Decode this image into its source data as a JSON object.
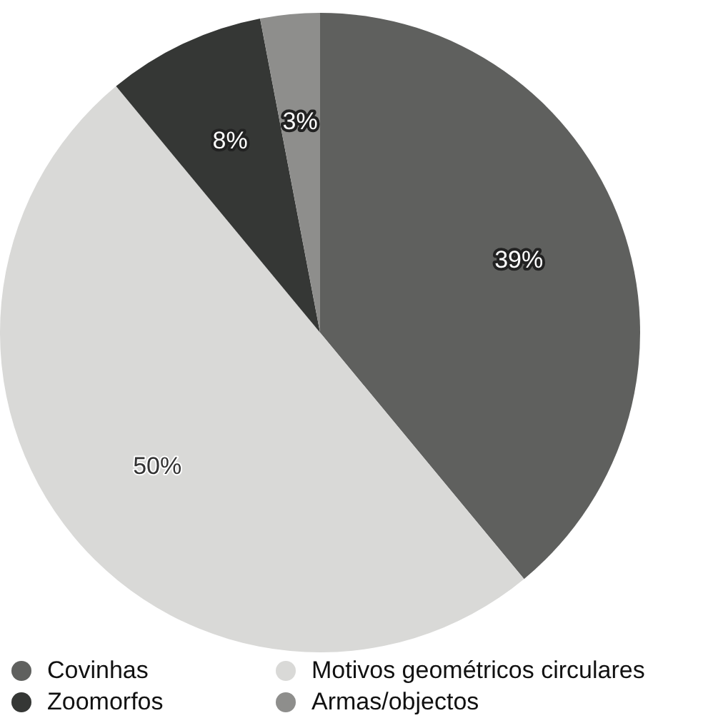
{
  "chart_data": {
    "type": "pie",
    "categories": [
      "Covinhas",
      "Motivos geométricos circulares",
      "Zoomorfos",
      "Armas/objectos"
    ],
    "values": [
      39,
      50,
      8,
      3
    ],
    "colors": [
      "#5f605e",
      "#d9d9d7",
      "#353735",
      "#8e8e8c"
    ],
    "value_labels": [
      "39%",
      "50%",
      "8%",
      "3%"
    ],
    "legend": "bottom"
  }
}
